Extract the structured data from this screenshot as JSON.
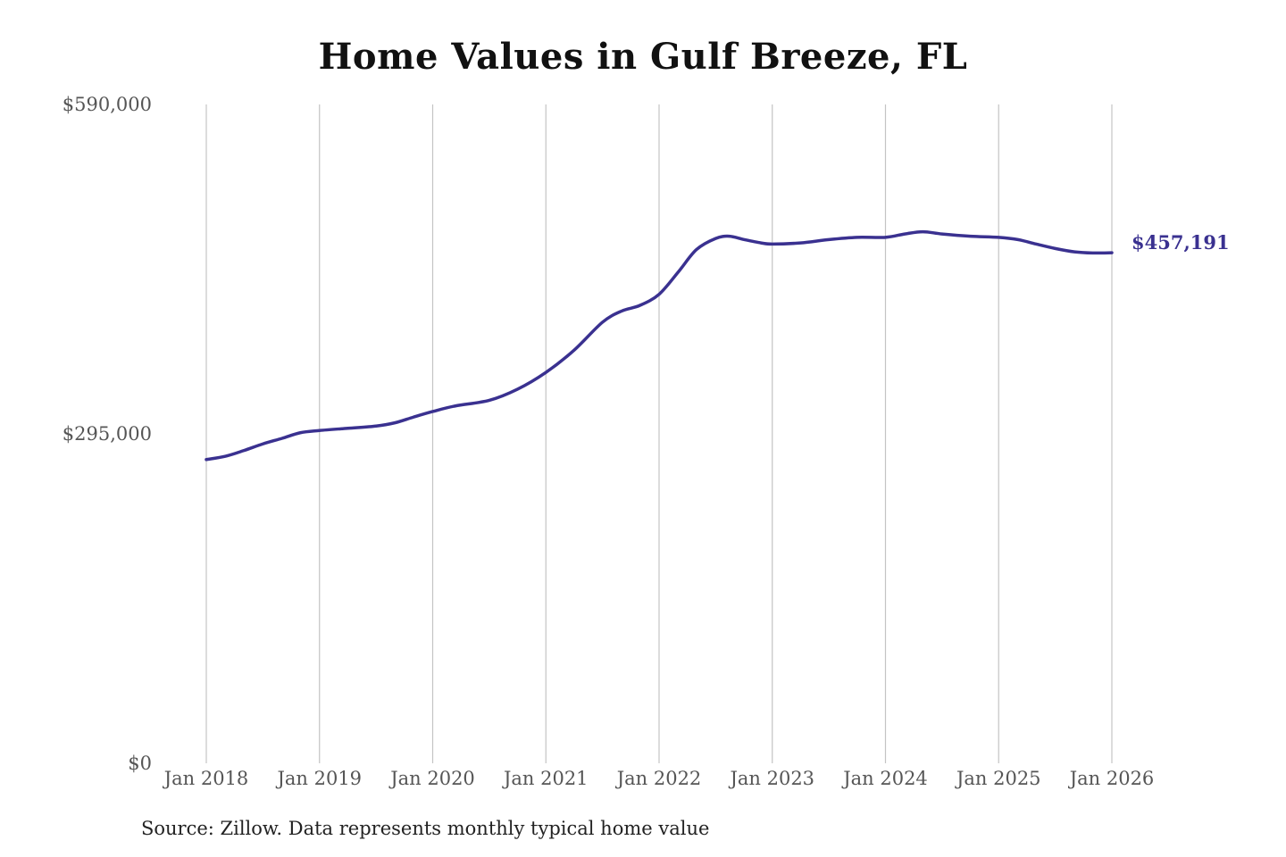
{
  "chart_data": {
    "type": "line",
    "title": "Home Values in Gulf Breeze, FL",
    "xlabel": "",
    "ylabel": "",
    "ylim": [
      0,
      590000
    ],
    "y_ticks": [
      {
        "value": 0,
        "label": "$0"
      },
      {
        "value": 295000,
        "label": "$295,000"
      },
      {
        "value": 590000,
        "label": "$590,000"
      }
    ],
    "x_ticks": [
      {
        "value": 2018.0,
        "label": "Jan 2018"
      },
      {
        "value": 2019.0,
        "label": "Jan 2019"
      },
      {
        "value": 2020.0,
        "label": "Jan 2020"
      },
      {
        "value": 2021.0,
        "label": "Jan 2021"
      },
      {
        "value": 2022.0,
        "label": "Jan 2022"
      },
      {
        "value": 2023.0,
        "label": "Jan 2023"
      },
      {
        "value": 2024.0,
        "label": "Jan 2024"
      },
      {
        "value": 2025.0,
        "label": "Jan 2025"
      },
      {
        "value": 2026.0,
        "label": "Jan 2026"
      }
    ],
    "xlim": [
      2018.0,
      2026.0
    ],
    "grid": "vertical",
    "line_color": "#3a3190",
    "end_label": "$457,191",
    "series": [
      {
        "x": [
          2018.0,
          2018.17,
          2018.33,
          2018.5,
          2018.67,
          2018.83,
          2019.0,
          2019.25,
          2019.5,
          2019.67,
          2019.83,
          2020.0,
          2020.2,
          2020.5,
          2020.75,
          2021.0,
          2021.25,
          2021.5,
          2021.67,
          2021.83,
          2022.0,
          2022.17,
          2022.33,
          2022.5,
          2022.62,
          2022.75,
          2022.9,
          2023.0,
          2023.25,
          2023.5,
          2023.75,
          2024.0,
          2024.17,
          2024.33,
          2024.5,
          2024.75,
          2025.0,
          2025.17,
          2025.33,
          2025.5,
          2025.67,
          2025.83,
          2026.0
        ],
        "values": [
          272000,
          275000,
          280000,
          286000,
          291000,
          296000,
          298000,
          300000,
          302000,
          305000,
          310000,
          315000,
          320000,
          325000,
          335000,
          350000,
          370000,
          395000,
          405000,
          410000,
          420000,
          440000,
          460000,
          470000,
          472000,
          469000,
          466000,
          465000,
          466000,
          469000,
          471000,
          471000,
          474000,
          476000,
          474000,
          472000,
          471000,
          469000,
          465000,
          461000,
          458000,
          457000,
          457191
        ]
      }
    ]
  },
  "source_note": "Source: Zillow. Data represents monthly typical home value"
}
